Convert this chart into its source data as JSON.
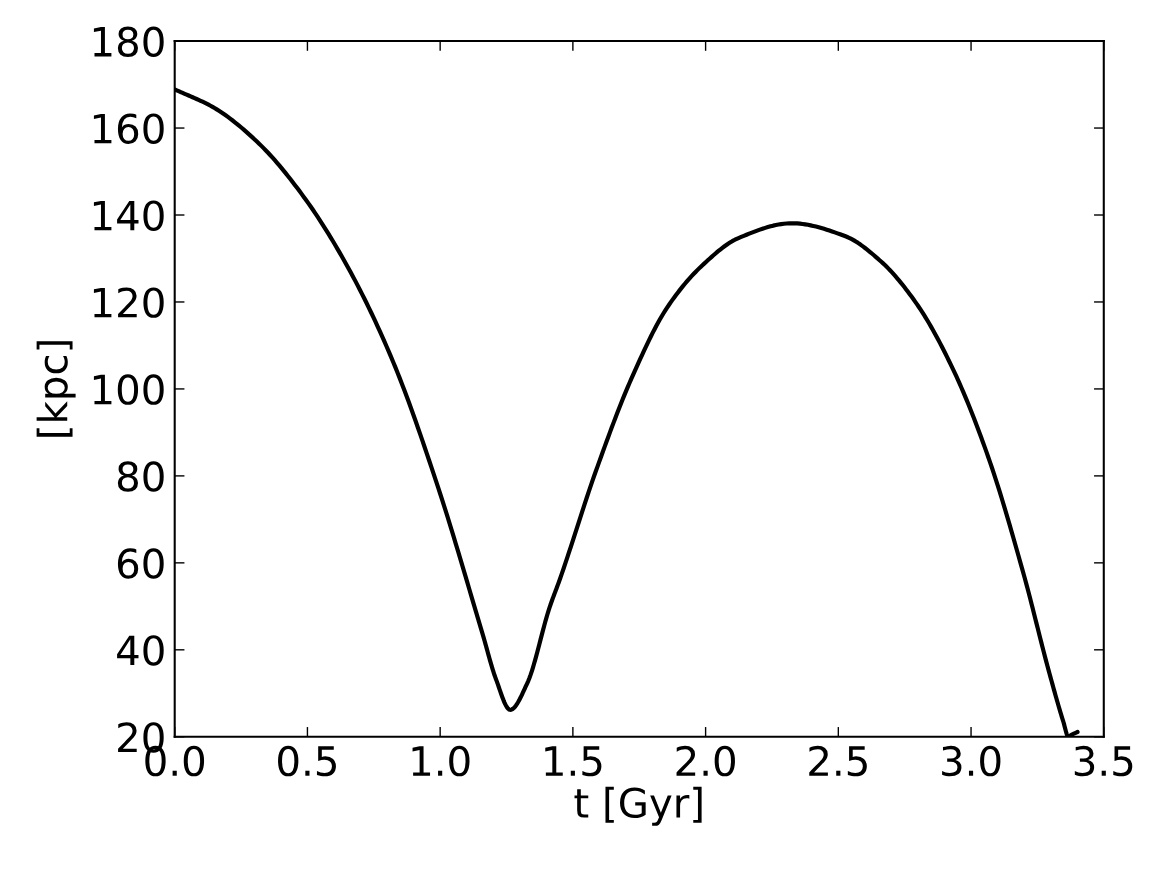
{
  "chart_data": {
    "type": "line",
    "xlabel": "t [Gyr]",
    "ylabel": "[kpc]",
    "xlim": [
      0.0,
      3.5
    ],
    "xticks": [
      {
        "value": 0,
        "label": "0.0"
      },
      0.5,
      {
        "value": 1,
        "label": "1.0"
      },
      1.5,
      {
        "value": 2,
        "label": "2.0"
      },
      2.5,
      {
        "value": 3,
        "label": "3.0"
      },
      3.5
    ],
    "ylim": [
      20,
      180
    ],
    "yticks": [
      20,
      40,
      60,
      80,
      100,
      120,
      140,
      160,
      180
    ],
    "grid": false,
    "legend": false,
    "marker": "none",
    "line_style": "solid",
    "series": [
      {
        "color": "#000000",
        "x": [
          0.0,
          0.15,
          0.318,
          0.487,
          0.655,
          0.823,
          0.992,
          1.16,
          1.21,
          1.264,
          1.328,
          1.412,
          1.452,
          1.586,
          1.72,
          1.855,
          1.989,
          2.124,
          2.325,
          2.527,
          2.661,
          2.796,
          2.93,
          3.065,
          3.199,
          3.293,
          3.347,
          3.367,
          3.374,
          3.401
        ],
        "values": [
          168.9,
          164.6,
          156.4,
          144.1,
          127.7,
          106.2,
          77.4,
          43.6,
          33.3,
          26.2,
          32.3,
          49.7,
          56.4,
          81.0,
          102.3,
          118.7,
          128.5,
          134.7,
          138.1,
          135.1,
          129.3,
          119.5,
          104.8,
          84.3,
          57.2,
          35.1,
          23.6,
          20.0,
          20.3,
          21.1
        ]
      }
    ]
  }
}
